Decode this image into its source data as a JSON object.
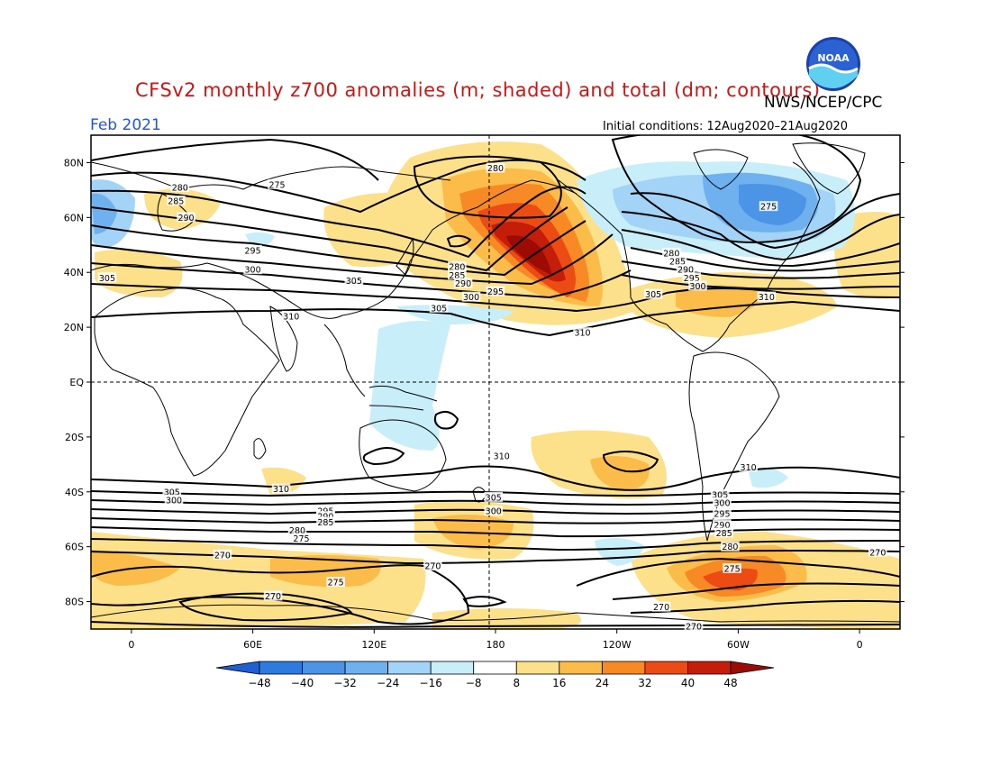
{
  "title": "CFSv2 monthly z700 anomalies (m; shaded) and total (dm; contours)",
  "agency": "NWS/NCEP/CPC",
  "logo_text": "NOAA",
  "valid_month": "Feb 2021",
  "initial_conditions": "Initial conditions: 12Aug2020–21Aug2020",
  "lat_labels": [
    {
      "lat": 80,
      "label": "80N"
    },
    {
      "lat": 60,
      "label": "60N"
    },
    {
      "lat": 40,
      "label": "40N"
    },
    {
      "lat": 20,
      "label": "20N"
    },
    {
      "lat": 0,
      "label": "EQ"
    },
    {
      "lat": -20,
      "label": "20S"
    },
    {
      "lat": -40,
      "label": "40S"
    },
    {
      "lat": -60,
      "label": "60S"
    },
    {
      "lat": -80,
      "label": "80S"
    }
  ],
  "lon_labels": [
    {
      "lon": 0,
      "label": "0"
    },
    {
      "lon": 60,
      "label": "60E"
    },
    {
      "lon": 120,
      "label": "120E"
    },
    {
      "lon": 180,
      "label": "180"
    },
    {
      "lon": 240,
      "label": "120W"
    },
    {
      "lon": 300,
      "label": "60W"
    },
    {
      "lon": 360,
      "label": "0"
    }
  ],
  "colorbar": {
    "labels": [
      "−48",
      "−40",
      "−32",
      "−24",
      "−16",
      "−8",
      "8",
      "16",
      "24",
      "32",
      "40",
      "48"
    ],
    "colors": [
      "#1f5fd6",
      "#2e7be0",
      "#4b94e6",
      "#6fb0ee",
      "#a3d3f6",
      "#c8eefa",
      "#ffffff",
      "#fde08a",
      "#fbbc4a",
      "#f88a26",
      "#ec4b14",
      "#c41e0a",
      "#9c0c04"
    ]
  },
  "contour_labels": [
    {
      "text": "280",
      "lon": 180,
      "lat": 78
    },
    {
      "text": "275",
      "lon": 72,
      "lat": 72
    },
    {
      "text": "280",
      "lon": 24,
      "lat": 71
    },
    {
      "text": "285",
      "lon": 22,
      "lat": 66
    },
    {
      "text": "290",
      "lon": 27,
      "lat": 60
    },
    {
      "text": "295",
      "lon": 60,
      "lat": 48
    },
    {
      "text": "300",
      "lon": 60,
      "lat": 41
    },
    {
      "text": "305",
      "lon": -12,
      "lat": 38
    },
    {
      "text": "305",
      "lon": 110,
      "lat": 37
    },
    {
      "text": "310",
      "lon": 79,
      "lat": 24
    },
    {
      "text": "280",
      "lon": 161,
      "lat": 42
    },
    {
      "text": "285",
      "lon": 161,
      "lat": 39
    },
    {
      "text": "290",
      "lon": 164,
      "lat": 36
    },
    {
      "text": "295",
      "lon": 180,
      "lat": 33
    },
    {
      "text": "300",
      "lon": 168,
      "lat": 31
    },
    {
      "text": "305",
      "lon": 152,
      "lat": 27
    },
    {
      "text": "310",
      "lon": 223,
      "lat": 18
    },
    {
      "text": "275",
      "lon": 315,
      "lat": 64
    },
    {
      "text": "280",
      "lon": 267,
      "lat": 47
    },
    {
      "text": "285",
      "lon": 270,
      "lat": 44
    },
    {
      "text": "290",
      "lon": 274,
      "lat": 41
    },
    {
      "text": "295",
      "lon": 277,
      "lat": 38
    },
    {
      "text": "300",
      "lon": 280,
      "lat": 35
    },
    {
      "text": "305",
      "lon": 258,
      "lat": 32
    },
    {
      "text": "310",
      "lon": 314,
      "lat": 31
    },
    {
      "text": "310",
      "lon": 183,
      "lat": -27
    },
    {
      "text": "310",
      "lon": 305,
      "lat": -31
    },
    {
      "text": "310",
      "lon": 74,
      "lat": -39
    },
    {
      "text": "305",
      "lon": 20,
      "lat": -40
    },
    {
      "text": "300",
      "lon": 21,
      "lat": -43
    },
    {
      "text": "295",
      "lon": 96,
      "lat": -47
    },
    {
      "text": "290",
      "lon": 96,
      "lat": -49
    },
    {
      "text": "285",
      "lon": 96,
      "lat": -51
    },
    {
      "text": "280",
      "lon": 82,
      "lat": -54
    },
    {
      "text": "275",
      "lon": 84,
      "lat": -57
    },
    {
      "text": "305",
      "lon": 179,
      "lat": -42
    },
    {
      "text": "300",
      "lon": 179,
      "lat": -47
    },
    {
      "text": "305",
      "lon": 291,
      "lat": -41
    },
    {
      "text": "300",
      "lon": 292,
      "lat": -44
    },
    {
      "text": "295",
      "lon": 292,
      "lat": -48
    },
    {
      "text": "290",
      "lon": 292,
      "lat": -52
    },
    {
      "text": "285",
      "lon": 293,
      "lat": -55
    },
    {
      "text": "280",
      "lon": 296,
      "lat": -60
    },
    {
      "text": "275",
      "lon": 297,
      "lat": -68
    },
    {
      "text": "270",
      "lon": 45,
      "lat": -63
    },
    {
      "text": "270",
      "lon": 149,
      "lat": -67
    },
    {
      "text": "270",
      "lon": 70,
      "lat": -78
    },
    {
      "text": "275",
      "lon": 101,
      "lat": -73
    },
    {
      "text": "270",
      "lon": 262,
      "lat": -82
    },
    {
      "text": "270",
      "lon": 278,
      "lat": -89
    },
    {
      "text": "270",
      "lon": 369,
      "lat": -62
    }
  ]
}
